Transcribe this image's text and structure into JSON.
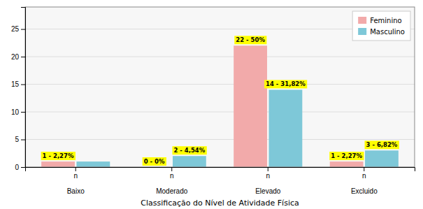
{
  "chart_data": {
    "type": "bar",
    "xlabel": "Classificação do Nível de Atividade Física",
    "categories": [
      "n\n\nBaixo",
      "n\n\nModerado",
      "n\n\nElevado",
      "n\n\nExcluido"
    ],
    "series": [
      {
        "name": "Feminino",
        "color": "#F2AAAA",
        "values": [
          1,
          0,
          22,
          1
        ],
        "value_labels": [
          "1 - 2,27%",
          "0 - 0%",
          "22 - 50%",
          "1 - 2,27%"
        ]
      },
      {
        "name": "Masculino",
        "color": "#7EC8D8",
        "values": [
          1,
          2,
          14,
          3
        ],
        "value_labels": [
          null,
          "2 - 4,54%",
          "14 - 31,82%",
          "3 - 6,82%"
        ]
      }
    ],
    "ylim": [
      0,
      29
    ],
    "yticks": [
      0,
      5,
      10,
      15,
      20,
      25
    ],
    "grid": true,
    "legend": "upper right"
  }
}
